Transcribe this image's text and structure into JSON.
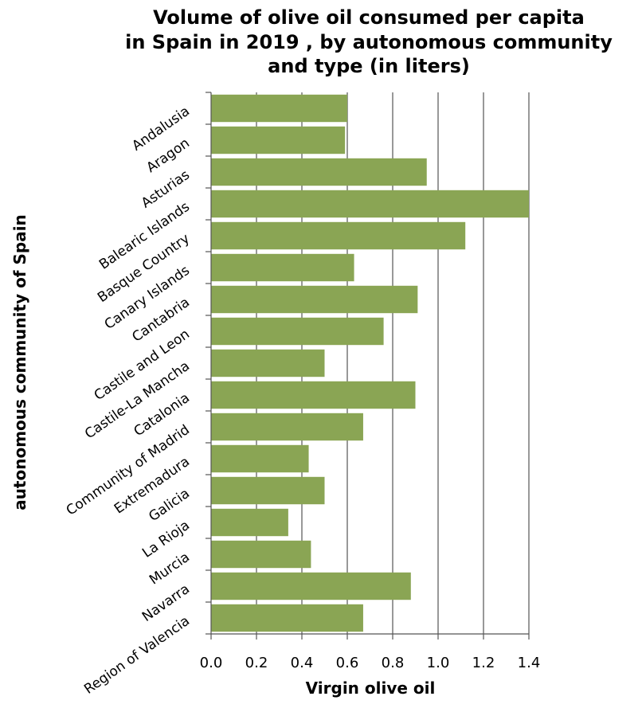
{
  "chart_data": {
    "type": "bar",
    "orientation": "horizontal",
    "title_lines": [
      "Volume of olive oil consumed per capita",
      "in Spain in 2019 , by autonomous community",
      "and type (in liters)"
    ],
    "xlabel": "Virgin olive oil",
    "ylabel": "autonomous community of Spain",
    "xlim": [
      0,
      1.4
    ],
    "xticks": [
      "0.0",
      "0.2",
      "0.4",
      "0.6",
      "0.8",
      "1.0",
      "1.2",
      "1.4"
    ],
    "grid": "vertical",
    "bar_color": "#8aa554",
    "categories": [
      "Andalusia",
      "Aragon",
      "Asturias",
      "Balearic Islands",
      "Basque Country",
      "Canary Islands",
      "Cantabria",
      "Castile and Leon",
      "Castile-La Mancha",
      "Catalonia",
      "Community of Madrid",
      "Extremadura",
      "Galicia",
      "La Rioja",
      "Murcia",
      "Navarra",
      "Region of Valencia"
    ],
    "values": [
      0.6,
      0.59,
      0.95,
      1.4,
      1.12,
      0.63,
      0.91,
      0.76,
      0.5,
      0.9,
      0.67,
      0.43,
      0.5,
      0.34,
      0.44,
      0.88,
      0.67
    ]
  }
}
